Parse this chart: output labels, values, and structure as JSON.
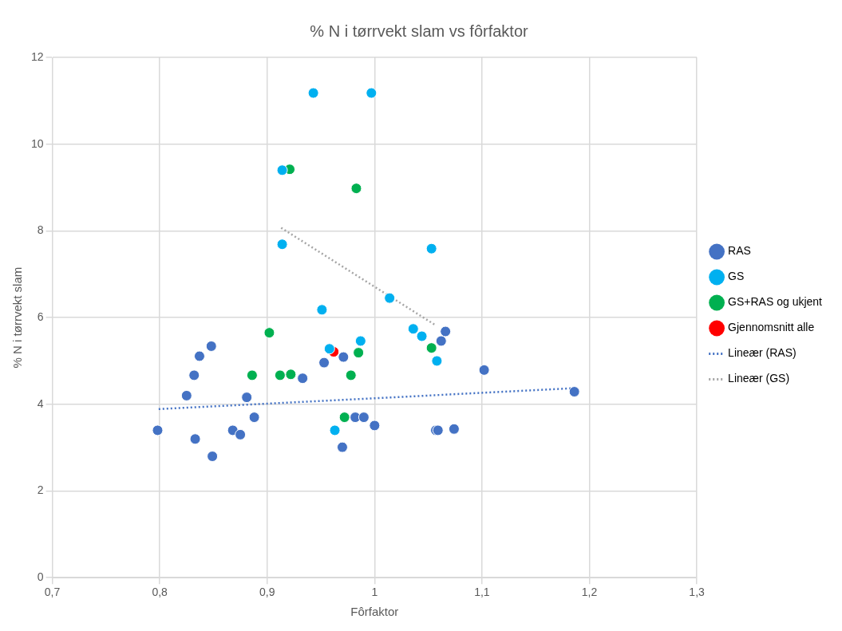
{
  "chart_data": {
    "type": "scatter",
    "title": "% N i tørrvekt slam vs fôrfaktor",
    "xlabel": "Fôrfaktor",
    "ylabel": "% N i tørrvekt slam",
    "xlim": [
      0.7,
      1.3
    ],
    "xticks": [
      {
        "value": 0.7,
        "label": "0,7"
      },
      {
        "value": 0.8,
        "label": "0,8"
      },
      {
        "value": 0.9,
        "label": "0,9"
      },
      {
        "value": 1,
        "label": "1"
      },
      {
        "value": 1.1,
        "label": "1,1"
      },
      {
        "value": 1.2,
        "label": "1,2"
      },
      {
        "value": 1.3,
        "label": "1,3"
      }
    ],
    "ylim": [
      0,
      12
    ],
    "yticks": [
      0,
      2,
      4,
      6,
      8,
      10,
      12
    ],
    "grid": true,
    "legend": "right",
    "marker": "circle",
    "series": [
      {
        "name": "RAS",
        "color": "#4472c4",
        "x": [
          0.798,
          0.825,
          0.833,
          0.832,
          0.837,
          0.848,
          0.849,
          0.868,
          0.875,
          0.881,
          0.888,
          0.933,
          0.953,
          0.971,
          0.97,
          0.982,
          0.99,
          1.0,
          1.057,
          1.059,
          1.074,
          1.062,
          1.066,
          1.102,
          1.186
        ],
        "values": [
          3.4,
          4.2,
          3.2,
          4.67,
          5.11,
          5.34,
          2.8,
          3.4,
          3.3,
          4.16,
          3.7,
          4.6,
          4.96,
          5.09,
          3.01,
          3.7,
          3.7,
          3.51,
          3.4,
          3.4,
          3.43,
          5.46,
          5.68,
          4.79,
          4.29
        ]
      },
      {
        "name": "GS",
        "color": "#00b0f0",
        "x": [
          0.943,
          0.997,
          0.914,
          0.914,
          0.951,
          0.958,
          0.987,
          1.014,
          1.053,
          1.036,
          1.044,
          1.058,
          0.963
        ],
        "values": [
          11.18,
          11.18,
          9.4,
          7.69,
          6.18,
          5.28,
          5.46,
          6.45,
          7.59,
          5.74,
          5.57,
          5.0,
          3.4
        ]
      },
      {
        "name": "GS+RAS og ukjent",
        "color": "#00b050",
        "x": [
          0.921,
          0.983,
          0.902,
          0.886,
          0.912,
          0.922,
          0.978,
          0.985,
          1.053,
          0.972
        ],
        "values": [
          9.42,
          8.98,
          5.65,
          4.67,
          4.67,
          4.69,
          4.67,
          5.19,
          5.3,
          3.7
        ]
      },
      {
        "name": "Gjennomsnitt alle",
        "color": "#ff0000",
        "x": [
          0.962
        ],
        "values": [
          5.21
        ]
      },
      {
        "name": "Lineær (RAS)",
        "type": "line",
        "color": "#4472c4",
        "line_style": "dotted",
        "marker": "none",
        "x": [
          0.799,
          1.185
        ],
        "values": [
          3.89,
          4.37
        ]
      },
      {
        "name": "Lineær (GS)",
        "type": "line",
        "color": "#a5a5a5",
        "line_style": "dotted",
        "marker": "none",
        "x": [
          0.913,
          1.057
        ],
        "values": [
          8.07,
          5.82
        ]
      }
    ]
  }
}
